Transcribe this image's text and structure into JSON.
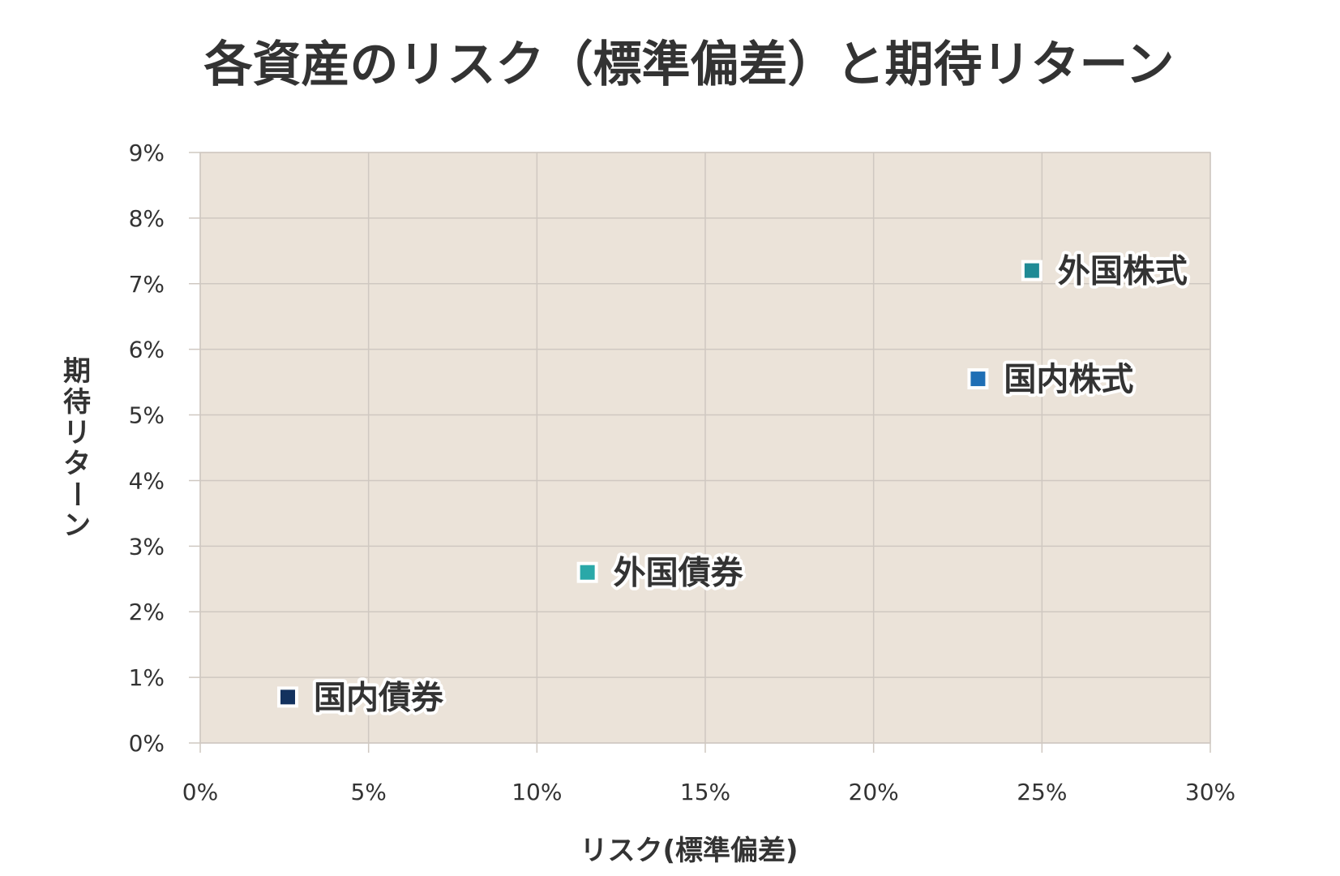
{
  "chart_data": {
    "type": "scatter",
    "title": "各資産のリスク（標準偏差）と期待リターン",
    "xlabel": "リスク(標準偏差)",
    "ylabel": "期待リターン",
    "xlim": [
      0,
      30
    ],
    "ylim": [
      0,
      9
    ],
    "x_ticks": [
      "0%",
      "5%",
      "10%",
      "15%",
      "20%",
      "25%",
      "30%"
    ],
    "y_ticks": [
      "0%",
      "1%",
      "2%",
      "3%",
      "4%",
      "5%",
      "6%",
      "7%",
      "8%",
      "9%"
    ],
    "grid": true,
    "legend": "none",
    "plot_background": "#ebe3d9",
    "points": [
      {
        "label": "国内債券",
        "x": 2.6,
        "y": 0.7,
        "color": "#13325e"
      },
      {
        "label": "外国債券",
        "x": 11.5,
        "y": 2.6,
        "color": "#2aa8a8"
      },
      {
        "label": "国内株式",
        "x": 23.1,
        "y": 5.55,
        "color": "#1f6fb5"
      },
      {
        "label": "外国株式",
        "x": 24.7,
        "y": 7.2,
        "color": "#1f8a94"
      }
    ]
  }
}
